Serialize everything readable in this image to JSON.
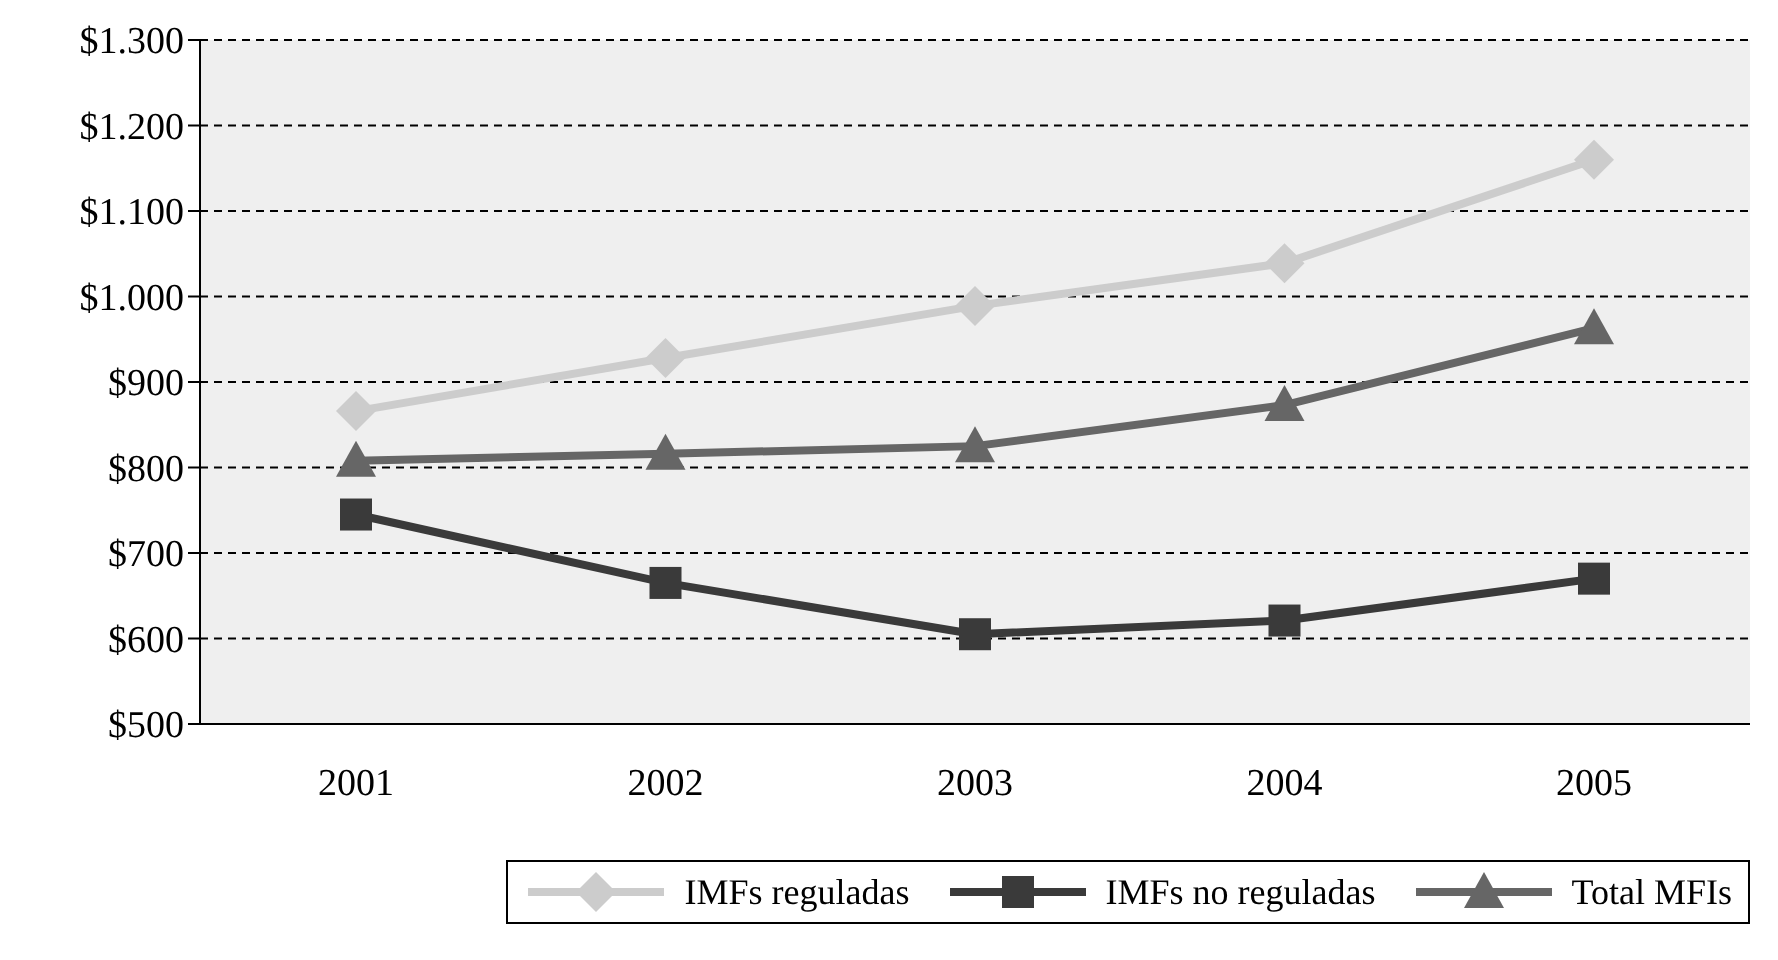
{
  "chart_data": {
    "type": "line",
    "categories": [
      "2001",
      "2002",
      "2003",
      "2004",
      "2005"
    ],
    "series": [
      {
        "name": "IMFs reguladas",
        "color": "#cccccc",
        "marker": "diamond",
        "values": [
          866,
          928,
          989,
          1039,
          1160
        ]
      },
      {
        "name": "IMFs no reguladas",
        "color": "#3a3a3a",
        "marker": "square",
        "values": [
          745,
          665,
          605,
          621,
          670
        ]
      },
      {
        "name": "Total MFIs",
        "color": "#666666",
        "marker": "triangle",
        "values": [
          808,
          816,
          825,
          873,
          963
        ]
      }
    ],
    "ylim": [
      500,
      1300
    ],
    "yticks": [
      {
        "value": 500,
        "label": "$500"
      },
      {
        "value": 600,
        "label": "$600"
      },
      {
        "value": 700,
        "label": "$700"
      },
      {
        "value": 800,
        "label": "$800"
      },
      {
        "value": 900,
        "label": "$900"
      },
      {
        "value": 1000,
        "label": "$1.000"
      },
      {
        "value": 1100,
        "label": "$1.100"
      },
      {
        "value": 1200,
        "label": "$1.200"
      },
      {
        "value": 1300,
        "label": "$1.300"
      }
    ],
    "grid": "y",
    "legend": "bottom right"
  }
}
